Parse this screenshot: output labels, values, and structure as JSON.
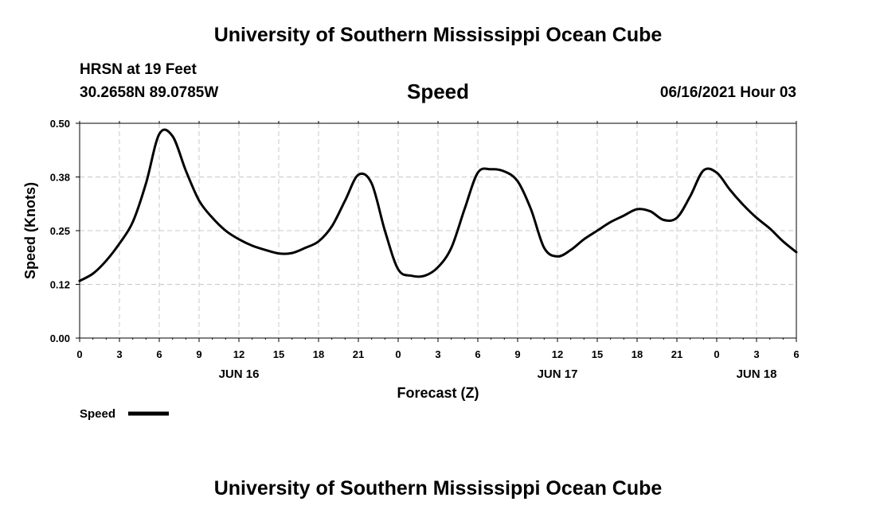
{
  "header": {
    "title": "University of Southern Mississippi Ocean Cube",
    "station": "HRSN at 19 Feet",
    "coords": "30.2658N  89.0785W",
    "parameter": "Speed",
    "datetime": "06/16/2021 Hour 03"
  },
  "footer": {
    "title": "University of Southern Mississippi Ocean Cube"
  },
  "colors": {
    "line": "#000000",
    "grid": "#c8c8c8",
    "background": "#ffffff"
  },
  "chart_data": {
    "type": "line",
    "xlabel": "Forecast (Z)",
    "ylabel": "Speed (Knots)",
    "xlim": [
      0,
      54
    ],
    "ylim": [
      0.0,
      0.5
    ],
    "x_unit": "hours since 2021-06-16 00Z",
    "y_ticks": [
      "0.00",
      "0.12",
      "0.25",
      "0.38",
      "0.50"
    ],
    "x_ticks": [
      {
        "h": 0,
        "label": "0"
      },
      {
        "h": 3,
        "label": "3"
      },
      {
        "h": 6,
        "label": "6"
      },
      {
        "h": 9,
        "label": "9"
      },
      {
        "h": 12,
        "label": "12"
      },
      {
        "h": 15,
        "label": "15"
      },
      {
        "h": 18,
        "label": "18"
      },
      {
        "h": 21,
        "label": "21"
      },
      {
        "h": 24,
        "label": "0"
      },
      {
        "h": 27,
        "label": "3"
      },
      {
        "h": 30,
        "label": "6"
      },
      {
        "h": 33,
        "label": "9"
      },
      {
        "h": 36,
        "label": "12"
      },
      {
        "h": 39,
        "label": "15"
      },
      {
        "h": 42,
        "label": "18"
      },
      {
        "h": 45,
        "label": "21"
      },
      {
        "h": 48,
        "label": "0"
      },
      {
        "h": 51,
        "label": "3"
      },
      {
        "h": 54,
        "label": "6"
      }
    ],
    "date_labels": [
      {
        "h": 12,
        "label": "JUN 16"
      },
      {
        "h": 36,
        "label": "JUN 17"
      },
      {
        "h": 51,
        "label": "JUN 18"
      }
    ],
    "grid": true,
    "legend": {
      "position": "bottom-left",
      "entries": [
        "Speed"
      ]
    },
    "series": [
      {
        "name": "Speed",
        "x": [
          0,
          1,
          2,
          3,
          4,
          5,
          6,
          7,
          8,
          9,
          10,
          11,
          12,
          13,
          14,
          15,
          16,
          17,
          18,
          19,
          20,
          21,
          22,
          23,
          24,
          25,
          26,
          27,
          28,
          29,
          30,
          31,
          32,
          33,
          34,
          35,
          36,
          37,
          38,
          39,
          40,
          41,
          42,
          43,
          44,
          45,
          46,
          47,
          48,
          49,
          50,
          51,
          52,
          53,
          54
        ],
        "y": [
          0.133,
          0.15,
          0.18,
          0.22,
          0.27,
          0.36,
          0.475,
          0.47,
          0.39,
          0.32,
          0.28,
          0.25,
          0.23,
          0.215,
          0.205,
          0.197,
          0.198,
          0.21,
          0.225,
          0.26,
          0.32,
          0.38,
          0.36,
          0.25,
          0.16,
          0.145,
          0.145,
          0.165,
          0.21,
          0.3,
          0.385,
          0.393,
          0.388,
          0.365,
          0.3,
          0.21,
          0.19,
          0.205,
          0.23,
          0.25,
          0.27,
          0.285,
          0.3,
          0.295,
          0.275,
          0.28,
          0.33,
          0.39,
          0.385,
          0.345,
          0.31,
          0.28,
          0.255,
          0.225,
          0.2
        ]
      }
    ]
  }
}
